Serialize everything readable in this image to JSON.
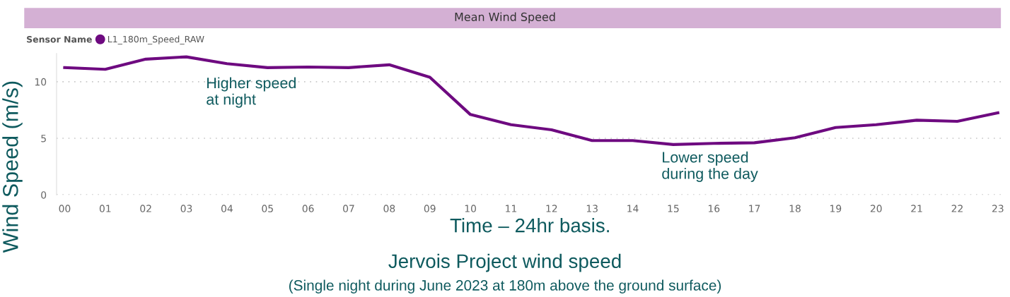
{
  "chart_data": {
    "type": "line",
    "title": "Mean Wind Speed",
    "legend_title": "Sensor Name",
    "xlabel": "Time – 24hr basis.",
    "ylabel": "Wind Speed (m/s)",
    "categories": [
      "00",
      "01",
      "02",
      "03",
      "04",
      "05",
      "06",
      "07",
      "08",
      "09",
      "10",
      "11",
      "12",
      "13",
      "14",
      "15",
      "16",
      "17",
      "18",
      "19",
      "20",
      "21",
      "22",
      "23"
    ],
    "series": [
      {
        "name": "L1_180m_Speed_RAW",
        "color": "#6e0a80",
        "values": [
          11.25,
          11.1,
          12.0,
          12.2,
          11.6,
          11.25,
          11.3,
          11.25,
          11.5,
          10.4,
          7.1,
          6.2,
          5.75,
          4.8,
          4.8,
          4.45,
          4.55,
          4.6,
          5.05,
          5.95,
          6.2,
          6.6,
          6.5,
          7.25
        ]
      }
    ],
    "ylim": [
      0,
      12.5
    ],
    "yticks": [
      0,
      5,
      10
    ],
    "grid": "y",
    "legend": "top left",
    "marker": "none",
    "line_style": "solid",
    "annotations": [
      "Higher speed\nat night",
      "Lower speed\nduring the day",
      "Jervois Project wind speed",
      "(Single night during June 2023 at 180m above the ground surface)"
    ]
  }
}
